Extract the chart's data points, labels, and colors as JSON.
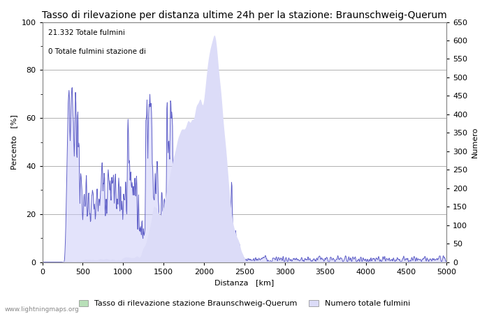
{
  "title": "Tasso di rilevazione per distanza ultime 24h per la stazione: Braunschweig-Querum",
  "xlabel": "Distanza   [km]",
  "ylabel_left": "Percento   [%]",
  "ylabel_right": "Numero",
  "annotation_line1": "21.332 Totale fulmini",
  "annotation_line2": "0 Totale fulmini stazione di",
  "legend_label1": "Tasso di rilevazione stazione Braunschweig-Querum",
  "legend_label2": "Numero totale fulmini",
  "watermark": "www.lightningmaps.org",
  "xlim": [
    0,
    5000
  ],
  "ylim_left": [
    0,
    100
  ],
  "ylim_right": [
    0,
    650
  ],
  "xticks": [
    0,
    500,
    1000,
    1500,
    2000,
    2500,
    3000,
    3500,
    4000,
    4500,
    5000
  ],
  "yticks_left": [
    0,
    20,
    40,
    60,
    80,
    100
  ],
  "yticks_right": [
    0,
    50,
    100,
    150,
    200,
    250,
    300,
    350,
    400,
    450,
    500,
    550,
    600,
    650
  ],
  "color_detection": "#c8c8f8",
  "color_detection_fill": "#c8c8f8",
  "color_lightning_fill": "#dcdcf8",
  "line_color": "#6060c8",
  "background_color": "#ffffff",
  "grid_color": "#b0b0b0",
  "title_fontsize": 10,
  "axis_fontsize": 8,
  "tick_fontsize": 8,
  "legend_fontsize": 8
}
